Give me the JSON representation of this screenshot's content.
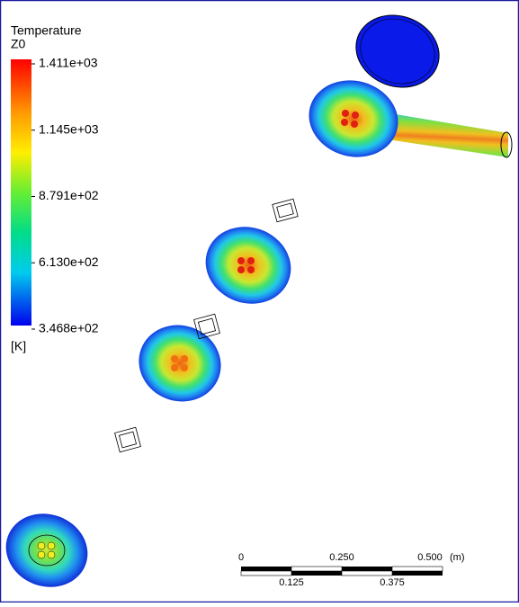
{
  "legend": {
    "title": "Temperature",
    "subtitle": "Z0",
    "ticks": [
      "1.411e+03",
      "1.145e+03",
      "8.791e+02",
      "6.130e+02",
      "3.468e+02"
    ],
    "unit": "[K]"
  },
  "scale_bar": {
    "top_labels": [
      "0",
      "0.250",
      "0.500"
    ],
    "unit": "(m)",
    "bottom_labels": [
      "0.125",
      "0.375"
    ]
  }
}
